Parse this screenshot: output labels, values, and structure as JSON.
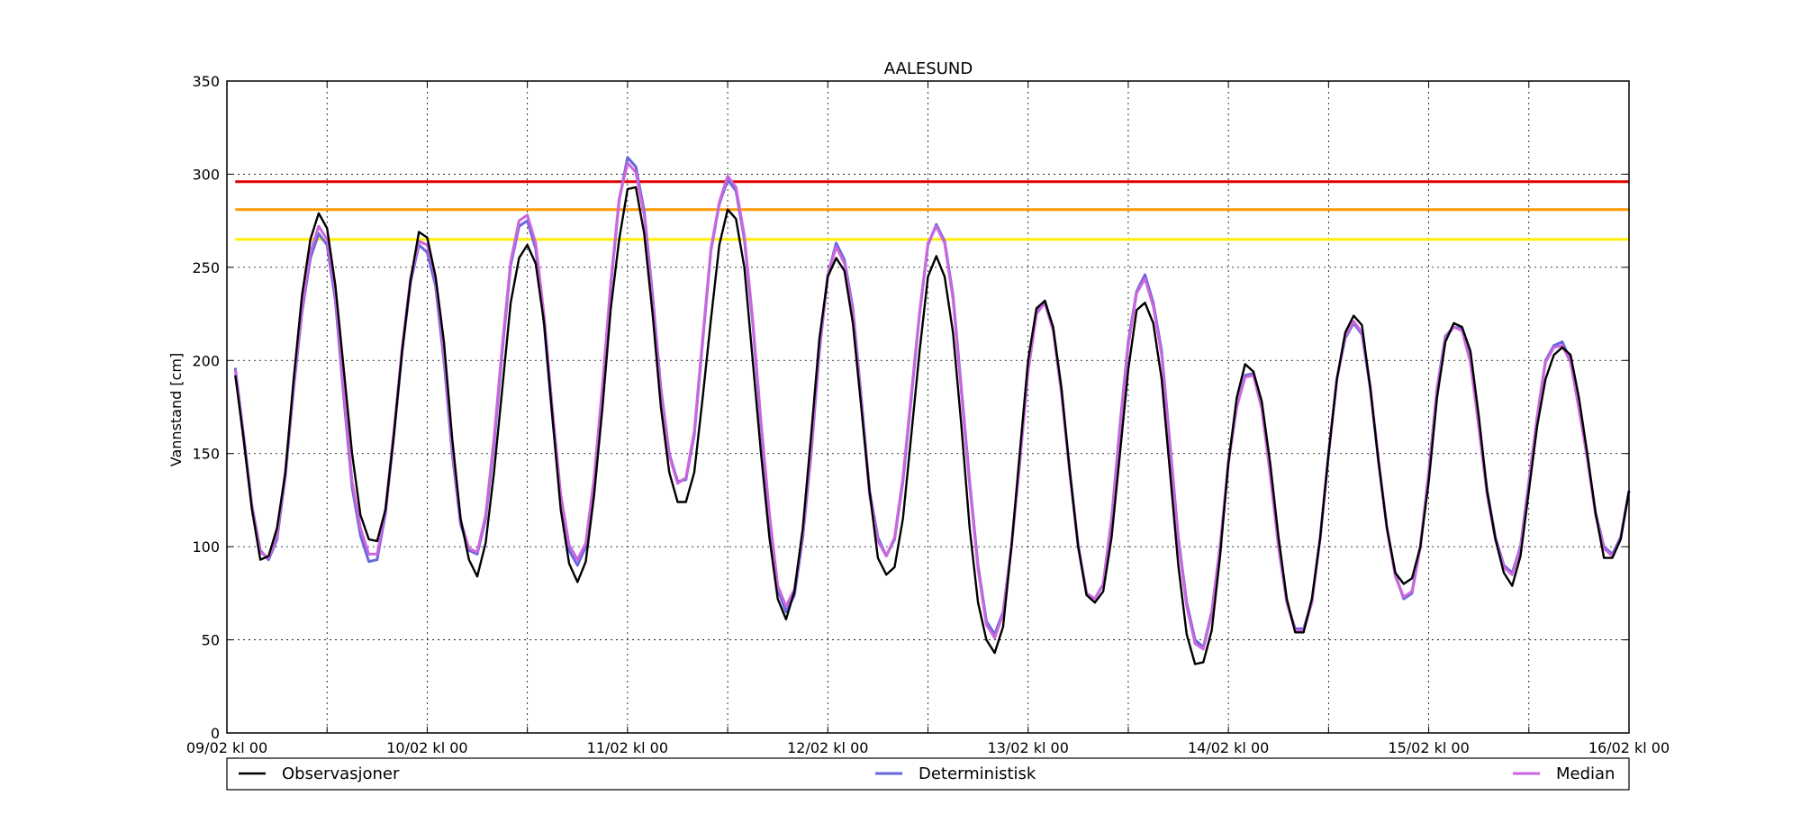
{
  "chart_data": {
    "type": "line",
    "title": "AALESUND",
    "xlabel": "",
    "ylabel": "Vannstand [cm]",
    "ylim": [
      0,
      350
    ],
    "yticks": [
      0,
      50,
      100,
      150,
      200,
      250,
      300,
      350
    ],
    "xlim": [
      0,
      168
    ],
    "x_unit": "hours since 09/02 kl 00",
    "xticks": [
      {
        "x": 0,
        "label": "09/02 kl 00"
      },
      {
        "x": 12,
        "label": ""
      },
      {
        "x": 24,
        "label": "10/02 kl 00"
      },
      {
        "x": 36,
        "label": ""
      },
      {
        "x": 48,
        "label": "11/02 kl 00"
      },
      {
        "x": 60,
        "label": ""
      },
      {
        "x": 72,
        "label": "12/02 kl 00"
      },
      {
        "x": 84,
        "label": ""
      },
      {
        "x": 96,
        "label": "13/02 kl 00"
      },
      {
        "x": 108,
        "label": ""
      },
      {
        "x": 120,
        "label": "14/02 kl 00"
      },
      {
        "x": 132,
        "label": ""
      },
      {
        "x": 144,
        "label": "15/02 kl 00"
      },
      {
        "x": 156,
        "label": ""
      },
      {
        "x": 168,
        "label": "16/02 kl 00"
      }
    ],
    "grid": true,
    "legend_placement": "bottom, below plot",
    "thresholds": [
      {
        "value": 296,
        "color": "#dd0000"
      },
      {
        "value": 281,
        "color": "#ff9900"
      },
      {
        "value": 265,
        "color": "#ffee00"
      }
    ],
    "series": [
      {
        "name": "Observasjoner",
        "color": "#000000",
        "x": [
          1,
          2,
          3,
          4,
          5,
          6,
          7,
          8,
          9,
          10,
          11,
          12,
          13,
          14,
          15,
          16,
          17,
          18,
          19,
          20,
          21,
          22,
          23,
          24,
          25,
          26,
          27,
          28,
          29,
          30,
          31,
          32,
          33,
          34,
          35,
          36,
          37,
          38,
          39,
          40,
          41,
          42,
          43,
          44,
          45,
          46,
          47,
          48,
          49,
          50,
          51,
          52,
          53,
          54,
          55,
          56,
          57,
          58,
          59,
          60,
          61,
          62,
          63,
          64,
          65,
          66,
          67,
          68,
          69,
          70,
          71,
          72,
          73,
          74,
          75,
          76,
          77,
          78,
          79,
          80,
          81,
          82,
          83,
          84,
          85,
          86,
          87,
          88,
          89,
          90,
          91,
          92,
          93,
          94,
          95,
          96,
          97,
          98,
          99,
          100,
          101,
          102,
          103,
          104,
          105,
          106,
          107,
          108,
          109,
          110,
          111,
          112,
          113,
          114,
          115,
          116,
          117,
          118,
          119,
          120,
          121,
          122,
          123,
          124,
          125,
          126,
          127,
          128,
          129,
          130,
          131,
          132,
          133,
          134,
          135,
          136,
          137,
          138,
          139,
          140,
          141,
          142,
          143,
          144,
          145,
          146,
          147,
          148,
          149,
          150,
          151,
          152,
          153,
          154,
          155,
          156,
          157,
          158,
          159,
          160,
          161,
          162,
          163,
          164,
          165,
          166,
          167,
          168
        ],
        "values": [
          192,
          158,
          120,
          93,
          95,
          110,
          140,
          190,
          235,
          265,
          279,
          271,
          240,
          195,
          150,
          117,
          104,
          103,
          120,
          160,
          205,
          243,
          269,
          266,
          245,
          210,
          158,
          115,
          93,
          84,
          102,
          140,
          185,
          231,
          255,
          262,
          252,
          220,
          170,
          120,
          91,
          81,
          92,
          128,
          175,
          228,
          265,
          292,
          293,
          268,
          225,
          175,
          140,
          124,
          124,
          140,
          180,
          222,
          262,
          281,
          276,
          250,
          200,
          150,
          105,
          72,
          61,
          76,
          110,
          160,
          212,
          245,
          255,
          248,
          220,
          175,
          130,
          94,
          85,
          89,
          115,
          160,
          205,
          245,
          256,
          245,
          215,
          165,
          110,
          70,
          50,
          43,
          57,
          100,
          150,
          200,
          228,
          232,
          218,
          185,
          140,
          100,
          74,
          70,
          76,
          105,
          150,
          195,
          227,
          231,
          220,
          190,
          140,
          90,
          53,
          37,
          38,
          55,
          95,
          145,
          180,
          198,
          194,
          178,
          145,
          105,
          72,
          54,
          54,
          72,
          105,
          150,
          190,
          215,
          224,
          219,
          185,
          145,
          110,
          86,
          80,
          83,
          100,
          135,
          180,
          210,
          220,
          218,
          205,
          170,
          130,
          104,
          86,
          79,
          95,
          130,
          165,
          190,
          203,
          207,
          203,
          180,
          150,
          118,
          94,
          94,
          104,
          130
        ]
      },
      {
        "name": "Deterministisk",
        "color": "#6666dd",
        "x": [
          1,
          2,
          3,
          4,
          5,
          6,
          7,
          8,
          9,
          10,
          11,
          12,
          13,
          14,
          15,
          16,
          17,
          18,
          19,
          20,
          21,
          22,
          23,
          24,
          25,
          26,
          27,
          28,
          29,
          30,
          31,
          32,
          33,
          34,
          35,
          36,
          37,
          38,
          39,
          40,
          41,
          42,
          43,
          44,
          45,
          46,
          47,
          48,
          49,
          50,
          51,
          52,
          53,
          54,
          55,
          56,
          57,
          58,
          59,
          60,
          61,
          62,
          63,
          64,
          65,
          66,
          67,
          68,
          69,
          70,
          71,
          72,
          73,
          74,
          75,
          76,
          77,
          78,
          79,
          80,
          81,
          82,
          83,
          84,
          85,
          86,
          87,
          88,
          89,
          90,
          91,
          92,
          93,
          94,
          95,
          96,
          97,
          98,
          99,
          100,
          101,
          102,
          103,
          104,
          105,
          106,
          107,
          108,
          109,
          110,
          111,
          112,
          113,
          114,
          115,
          116,
          117,
          118,
          119,
          120,
          121,
          122,
          123,
          124,
          125,
          126,
          127,
          128,
          129,
          130,
          131,
          132,
          133,
          134,
          135,
          136,
          137,
          138,
          139,
          140,
          141,
          142,
          143,
          144,
          145,
          146,
          147,
          148,
          149,
          150,
          151,
          152,
          153,
          154,
          155,
          156,
          157,
          158,
          159,
          160,
          161,
          162,
          163,
          164,
          165,
          166,
          167,
          168
        ],
        "values": [
          196,
          160,
          122,
          98,
          93,
          104,
          138,
          185,
          226,
          255,
          268,
          262,
          232,
          180,
          132,
          106,
          92,
          93,
          118,
          160,
          205,
          242,
          262,
          258,
          240,
          200,
          150,
          112,
          98,
          96,
          115,
          155,
          205,
          251,
          272,
          275,
          260,
          220,
          170,
          125,
          98,
          90,
          100,
          135,
          185,
          240,
          286,
          309,
          304,
          280,
          235,
          185,
          150,
          135,
          136,
          160,
          210,
          259,
          284,
          297,
          291,
          265,
          220,
          165,
          115,
          77,
          65,
          74,
          105,
          150,
          205,
          246,
          263,
          254,
          228,
          180,
          130,
          105,
          95,
          104,
          135,
          180,
          225,
          262,
          273,
          264,
          235,
          185,
          135,
          90,
          60,
          53,
          65,
          100,
          145,
          195,
          226,
          232,
          217,
          183,
          140,
          101,
          75,
          72,
          80,
          115,
          165,
          210,
          237,
          246,
          231,
          205,
          155,
          105,
          70,
          50,
          46,
          65,
          100,
          145,
          175,
          192,
          193,
          175,
          140,
          100,
          70,
          56,
          56,
          70,
          105,
          150,
          190,
          212,
          220,
          214,
          185,
          145,
          110,
          85,
          72,
          75,
          100,
          140,
          185,
          213,
          218,
          217,
          200,
          165,
          130,
          105,
          90,
          86,
          100,
          135,
          170,
          200,
          208,
          210,
          200,
          175,
          148,
          118,
          100,
          96,
          105,
          130
        ]
      },
      {
        "name": "Median",
        "color": "#cc66dd",
        "x": [
          1,
          2,
          3,
          4,
          5,
          6,
          7,
          8,
          9,
          10,
          11,
          12,
          13,
          14,
          15,
          16,
          17,
          18,
          19,
          20,
          21,
          22,
          23,
          24,
          25,
          26,
          27,
          28,
          29,
          30,
          31,
          32,
          33,
          34,
          35,
          36,
          37,
          38,
          39,
          40,
          41,
          42,
          43,
          44,
          45,
          46,
          47,
          48,
          49,
          50,
          51,
          52,
          53,
          54,
          55,
          56,
          57,
          58,
          59,
          60,
          61,
          62,
          63,
          64,
          65,
          66,
          67,
          68,
          69,
          70,
          71,
          72,
          73,
          74,
          75,
          76,
          77,
          78,
          79,
          80,
          81,
          82,
          83,
          84,
          85,
          86,
          87,
          88,
          89,
          90,
          91,
          92,
          93,
          94,
          95,
          96,
          97,
          98,
          99,
          100,
          101,
          102,
          103,
          104,
          105,
          106,
          107,
          108,
          109,
          110,
          111,
          112,
          113,
          114,
          115,
          116,
          117,
          118,
          119,
          120,
          121,
          122,
          123,
          124,
          125,
          126,
          127,
          128,
          129,
          130,
          131,
          132,
          133,
          134,
          135,
          136,
          137,
          138,
          139,
          140,
          141,
          142,
          143,
          144,
          145,
          146,
          147,
          148,
          149,
          150,
          151,
          152,
          153,
          154,
          155,
          156,
          157,
          158,
          159,
          160,
          161,
          162,
          163,
          164,
          165,
          166,
          167,
          168
        ],
        "values": [
          195,
          158,
          121,
          97,
          94,
          106,
          140,
          187,
          228,
          258,
          272,
          265,
          236,
          183,
          135,
          110,
          96,
          96,
          120,
          162,
          207,
          244,
          264,
          262,
          244,
          204,
          153,
          114,
          99,
          97,
          117,
          158,
          208,
          253,
          275,
          278,
          263,
          224,
          174,
          128,
          101,
          93,
          102,
          137,
          187,
          242,
          287,
          306,
          301,
          278,
          233,
          183,
          149,
          134,
          137,
          162,
          212,
          260,
          285,
          299,
          293,
          267,
          222,
          167,
          118,
          79,
          68,
          77,
          107,
          152,
          207,
          246,
          261,
          252,
          226,
          178,
          128,
          103,
          95,
          105,
          137,
          182,
          226,
          263,
          272,
          263,
          233,
          183,
          133,
          88,
          58,
          51,
          64,
          100,
          145,
          194,
          225,
          231,
          216,
          182,
          139,
          100,
          75,
          72,
          80,
          114,
          163,
          208,
          236,
          244,
          229,
          203,
          153,
          103,
          68,
          48,
          45,
          64,
          100,
          145,
          175,
          191,
          192,
          174,
          139,
          100,
          70,
          55,
          55,
          70,
          105,
          150,
          190,
          213,
          221,
          215,
          186,
          146,
          110,
          84,
          73,
          76,
          100,
          140,
          184,
          212,
          218,
          216,
          199,
          164,
          128,
          104,
          89,
          85,
          99,
          134,
          170,
          199,
          207,
          208,
          199,
          174,
          147,
          117,
          99,
          95,
          104,
          130
        ]
      }
    ]
  }
}
